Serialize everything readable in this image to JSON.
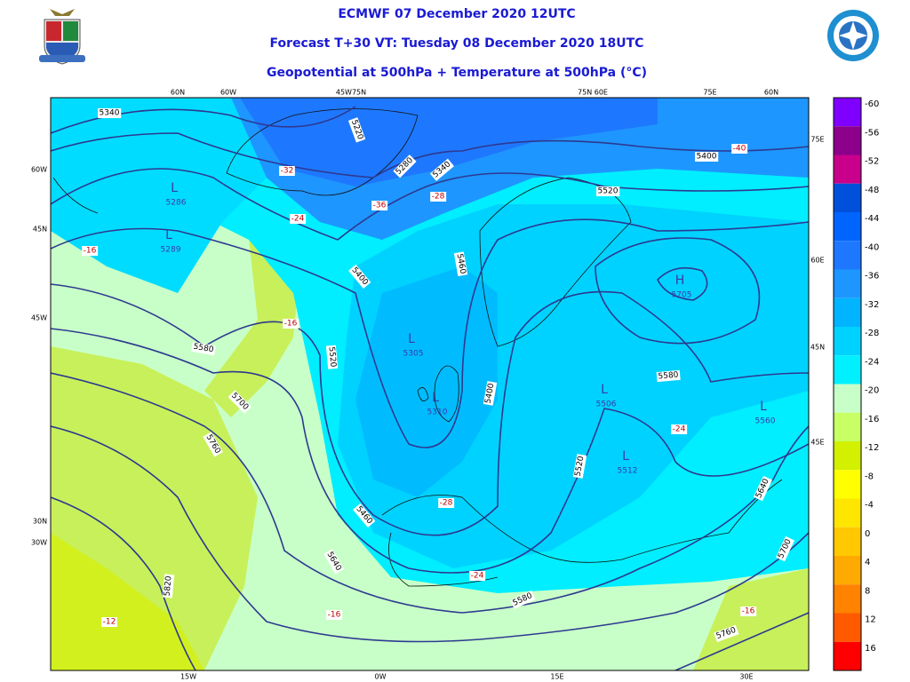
{
  "header": {
    "title": "ECMWF 07 December 2020 12UTC",
    "forecast": "Forecast T+30 VT: Tuesday 08 December 2020 18UTC",
    "field": "Geopotential at 500hPa + Temperature at 500hPa (°C)"
  },
  "map": {
    "top_labels": [
      "60N",
      "60W",
      "45W75N",
      "75N 60E",
      "75E",
      "60N"
    ],
    "left_labels": [
      "60W",
      "45N",
      "45W",
      "30N",
      "30W"
    ],
    "right_labels": [
      "75E",
      "60E",
      "45N",
      "45E"
    ],
    "bottom_labels": [
      "15W",
      "0W",
      "15E",
      "30E"
    ],
    "height_labels": [
      5340,
      5220,
      5280,
      5340,
      5520,
      5400,
      5400,
      5460,
      5580,
      5520,
      5700,
      5760,
      5400,
      5580,
      5520,
      5460,
      5640,
      5820,
      5580,
      5640,
      5700,
      5760
    ],
    "temperature_labels": [
      -32,
      -36,
      -28,
      -24,
      -16,
      -16,
      -40,
      -24,
      -28,
      -24,
      -16,
      -12,
      -16
    ],
    "centers": [
      {
        "symbol": "L",
        "value": 5286
      },
      {
        "symbol": "L",
        "value": 5289
      },
      {
        "symbol": "L",
        "value": 5305
      },
      {
        "symbol": "L",
        "value": 5310
      },
      {
        "symbol": "L",
        "value": 5506
      },
      {
        "symbol": "L",
        "value": 5512
      },
      {
        "symbol": "L",
        "value": 5560
      },
      {
        "symbol": "H",
        "value": 5705
      }
    ]
  },
  "colorbar": [
    {
      "label": -60,
      "color": "#7f00ff"
    },
    {
      "label": -56,
      "color": "#8c008c"
    },
    {
      "label": -52,
      "color": "#c8008c"
    },
    {
      "label": -48,
      "color": "#0050dc"
    },
    {
      "label": -44,
      "color": "#0064ff"
    },
    {
      "label": -40,
      "color": "#1e78ff"
    },
    {
      "label": -36,
      "color": "#1e96ff"
    },
    {
      "label": -32,
      "color": "#00b4ff"
    },
    {
      "label": -28,
      "color": "#00d2ff"
    },
    {
      "label": -24,
      "color": "#00f0ff"
    },
    {
      "label": -20,
      "color": "#c8ffc8"
    },
    {
      "label": -16,
      "color": "#c8ff64"
    },
    {
      "label": -12,
      "color": "#d2f000"
    },
    {
      "label": -8,
      "color": "#ffff00"
    },
    {
      "label": -4,
      "color": "#ffe600"
    },
    {
      "label": 0,
      "color": "#ffc800"
    },
    {
      "label": 4,
      "color": "#ffaa00"
    },
    {
      "label": 8,
      "color": "#ff8200"
    },
    {
      "label": 12,
      "color": "#ff5a00"
    },
    {
      "label": 16,
      "color": "#ff0000"
    }
  ]
}
